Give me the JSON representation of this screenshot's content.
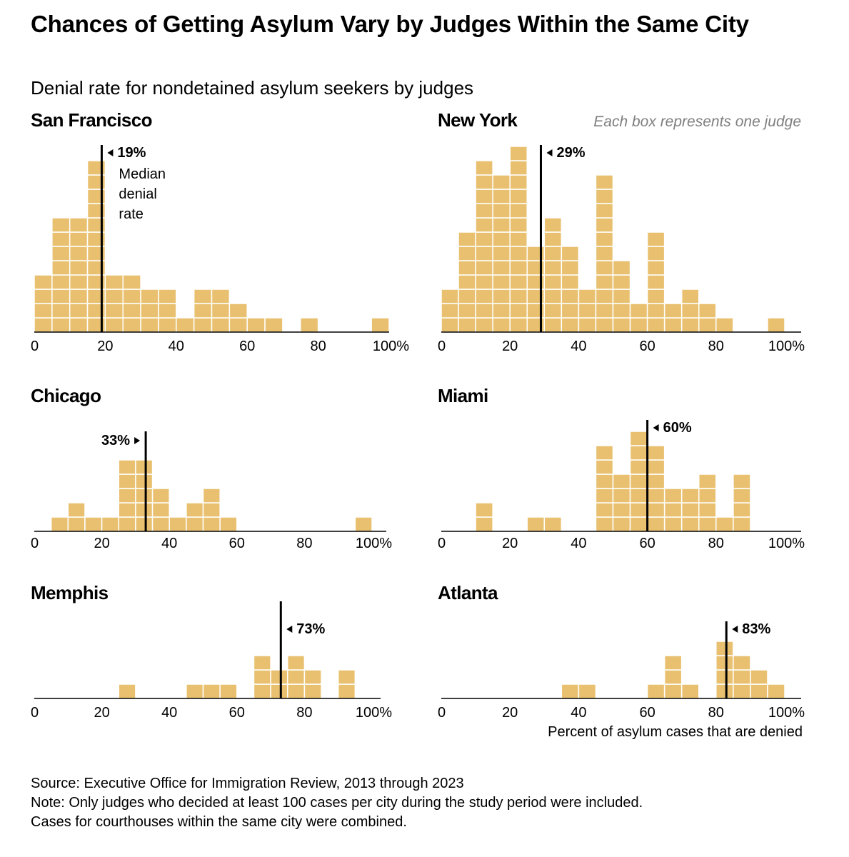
{
  "title": "Chances of Getting Asylum Vary by Judges Within the Same City",
  "subtitle": "Denial rate for nondetained asylum seekers by judges",
  "legend_note": "Each box represents one judge",
  "median_label_lines": [
    "Median",
    "denial",
    "rate"
  ],
  "x_axis_label": "Percent of asylum cases that are denied",
  "source": "Source: Executive Office for Immigration Review, 2013 through 2023",
  "note_lines": [
    "Note: Only judges who decided at least 100 cases per city during the study period were included.",
    "Cases for courthouses within the same city were combined."
  ],
  "colors": {
    "box": "#e8c06f",
    "grid": "#ffffff",
    "axis": "#000000",
    "median": "#000000"
  },
  "chart_data": [
    {
      "type": "bar",
      "city": "San Francisco",
      "bin_width": 5,
      "bins_start": [
        0,
        5,
        10,
        15,
        20,
        25,
        30,
        35,
        40,
        45,
        50,
        55,
        60,
        65,
        75,
        95
      ],
      "values": [
        4,
        8,
        8,
        12,
        4,
        4,
        3,
        3,
        1,
        3,
        3,
        2,
        1,
        1,
        1,
        1
      ],
      "median": 19,
      "median_label": "19%",
      "xlim": [
        0,
        100
      ],
      "ticks": [
        "0",
        "20",
        "40",
        "60",
        "80",
        "100%"
      ]
    },
    {
      "type": "bar",
      "city": "New York",
      "bin_width": 5,
      "bins_start": [
        0,
        5,
        10,
        15,
        20,
        25,
        30,
        35,
        40,
        45,
        50,
        55,
        60,
        65,
        70,
        75,
        80,
        95
      ],
      "values": [
        3,
        7,
        12,
        11,
        13,
        6,
        8,
        6,
        3,
        11,
        5,
        2,
        7,
        2,
        3,
        2,
        1,
        1
      ],
      "median": 29,
      "median_label": "29%",
      "xlim": [
        0,
        100
      ],
      "ticks": [
        "0",
        "20",
        "40",
        "60",
        "80",
        "100%"
      ]
    },
    {
      "type": "bar",
      "city": "Chicago",
      "bin_width": 5,
      "bins_start": [
        5,
        10,
        15,
        20,
        25,
        30,
        35,
        40,
        45,
        50,
        55,
        95
      ],
      "values": [
        1,
        2,
        1,
        1,
        5,
        5,
        3,
        1,
        2,
        3,
        1,
        1
      ],
      "median": 33,
      "median_label": "33%",
      "xlim": [
        0,
        100
      ],
      "ticks": [
        "0",
        "20",
        "40",
        "60",
        "80",
        "100%"
      ]
    },
    {
      "type": "bar",
      "city": "Miami",
      "bin_width": 5,
      "bins_start": [
        10,
        25,
        30,
        45,
        50,
        55,
        60,
        65,
        70,
        75,
        80,
        85
      ],
      "values": [
        2,
        1,
        1,
        6,
        4,
        7,
        6,
        3,
        3,
        4,
        1,
        4
      ],
      "median": 60,
      "median_label": "60%",
      "xlim": [
        0,
        100
      ],
      "ticks": [
        "0",
        "20",
        "40",
        "60",
        "80",
        "100%"
      ]
    },
    {
      "type": "bar",
      "city": "Memphis",
      "bin_width": 5,
      "bins_start": [
        25,
        45,
        50,
        55,
        65,
        70,
        75,
        80,
        90
      ],
      "values": [
        1,
        1,
        1,
        1,
        3,
        2,
        3,
        2,
        2
      ],
      "median": 73,
      "median_label": "73%",
      "xlim": [
        0,
        100
      ],
      "ticks": [
        "0",
        "20",
        "40",
        "60",
        "80",
        "100%"
      ]
    },
    {
      "type": "bar",
      "city": "Atlanta",
      "bin_width": 5,
      "bins_start": [
        35,
        40,
        60,
        65,
        70,
        80,
        85,
        90,
        95
      ],
      "values": [
        1,
        1,
        1,
        3,
        1,
        4,
        3,
        2,
        1
      ],
      "median": 83,
      "median_label": "83%",
      "xlim": [
        0,
        100
      ],
      "ticks": [
        "0",
        "20",
        "40",
        "60",
        "80",
        "100%"
      ]
    }
  ]
}
